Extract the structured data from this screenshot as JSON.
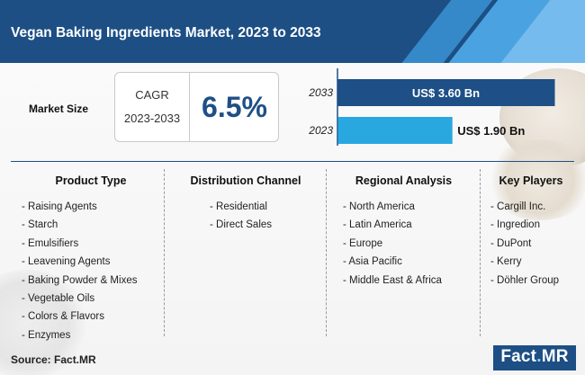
{
  "header": {
    "title": "Vegan Baking Ingredients Market, 2023 to 2033"
  },
  "market": {
    "label": "Market Size",
    "cagr_label": "CAGR",
    "cagr_period": "2023-2033",
    "cagr_value": "6.5%"
  },
  "chart_data": {
    "type": "bar",
    "orientation": "horizontal",
    "categories": [
      "2033",
      "2023"
    ],
    "values": [
      3.6,
      1.9
    ],
    "value_labels": [
      "US$ 3.60 Bn",
      "US$ 1.90 Bn"
    ],
    "colors": [
      "#1e4f86",
      "#29a8e0"
    ],
    "xlim": [
      0,
      3.6
    ],
    "title": "",
    "xlabel": "",
    "ylabel": ""
  },
  "segments": {
    "product": {
      "title": "Product Type",
      "items": [
        "- Raising Agents",
        "- Starch",
        "- Emulsifiers",
        "- Leavening Agents",
        "- Baking Powder & Mixes",
        "- Vegetable Oils",
        "- Colors & Flavors",
        "- Enzymes"
      ]
    },
    "distribution": {
      "title": "Distribution Channel",
      "items": [
        "- Residential",
        "- Direct Sales"
      ]
    },
    "regional": {
      "title": "Regional Analysis",
      "items": [
        "- North America",
        "- Latin America",
        "- Europe",
        "- Asia Pacific",
        "- Middle East & Africa"
      ]
    },
    "players": {
      "title": "Key Players",
      "items": [
        "- Cargill Inc.",
        "- Ingredion",
        "- DuPont",
        "- Kerry",
        "- Döhler Group"
      ]
    }
  },
  "footer": {
    "source": "Source: Fact.MR",
    "logo_main": "Fact",
    "logo_dot": ".",
    "logo_end": "MR"
  },
  "colors": {
    "brand": "#1d4f84",
    "accent": "#29a8e0"
  }
}
